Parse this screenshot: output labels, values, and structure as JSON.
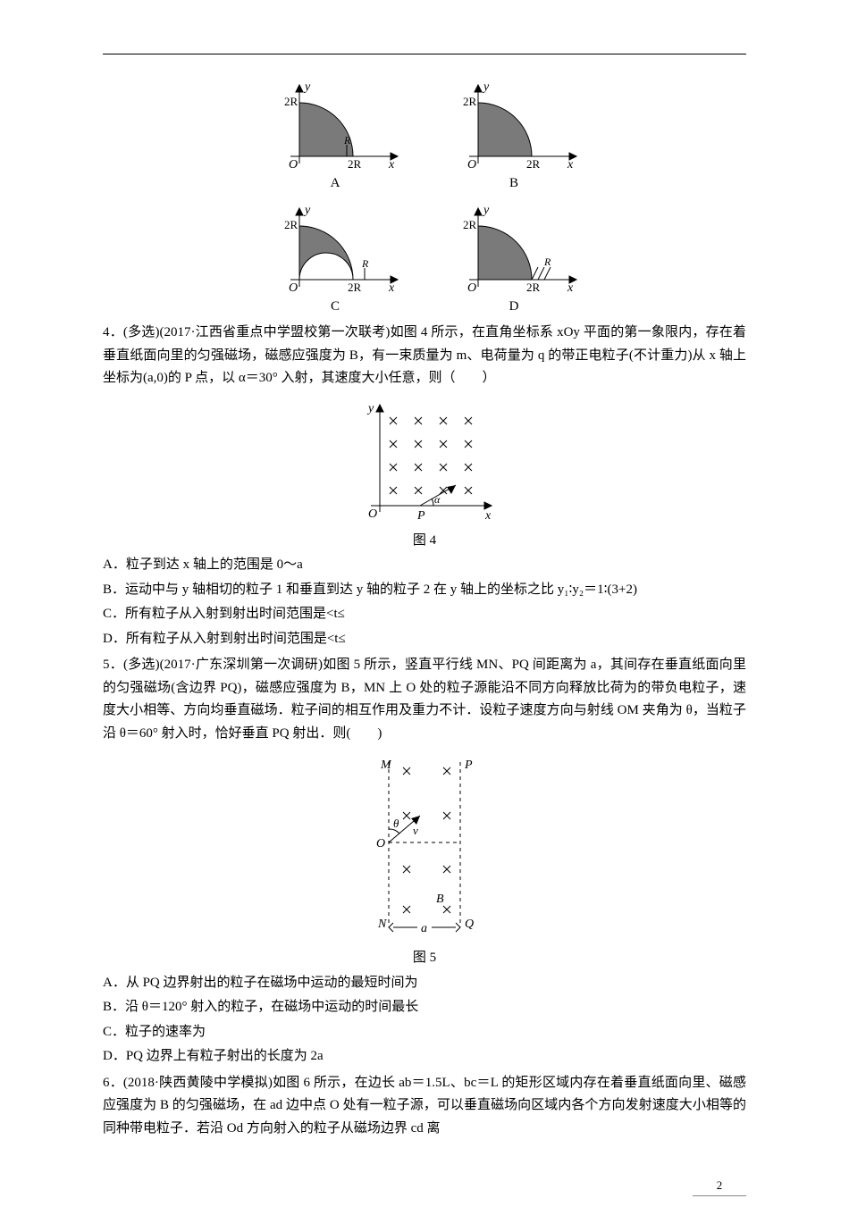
{
  "colors": {
    "text": "#000000",
    "rule": "#000000",
    "fill": "#7a7a7a",
    "bg": "#ffffff"
  },
  "fontsize": {
    "body": 15,
    "figlabel": 15,
    "pagenum": 13
  },
  "top_figure": {
    "cells": [
      "A",
      "B",
      "C",
      "D"
    ],
    "axis_labels": {
      "x": "x",
      "y": "y",
      "yTick": "2R",
      "xTick": "2R",
      "Rlabel": "R",
      "origin": "O"
    },
    "small_tick": {
      "A": true,
      "B": false,
      "C": true,
      "D": true
    }
  },
  "q4": {
    "stem": "4．(多选)(2017·江西省重点中学盟校第一次联考)如图 4 所示，在直角坐标系 xOy 平面的第一象限内，存在着垂直纸面向里的匀强磁场，磁感应强度为 B，有一束质量为 m、电荷量为 q 的带正电粒子(不计重力)从 x 轴上坐标为(a,0)的 P 点，以 α＝30° 入射，其速度大小任意，则（　　）",
    "fig_caption": "图 4",
    "fig": {
      "xlabel": "x",
      "ylabel": "y",
      "origin": "O",
      "P": "P",
      "alpha": "α",
      "cross_rows": 4,
      "cross_cols": 4
    },
    "options": {
      "A": "A．粒子到达 x 轴上的范围是 0～a",
      "B": "B．运动中与 y 轴相切的粒子 1 和垂直到达 y 轴的粒子 2 在 y 轴上的坐标之比 y₁∶y₂＝1∶(3+2)",
      "C": "C．所有粒子从入射到射出时间范围是<t≤",
      "D": "D．所有粒子从入射到射出时间范围是<t≤"
    }
  },
  "q5": {
    "stem": "5．(多选)(2017·广东深圳第一次调研)如图 5 所示，竖直平行线 MN、PQ 间距离为 a，其间存在垂直纸面向里的匀强磁场(含边界 PQ)，磁感应强度为 B，MN 上 O 处的粒子源能沿不同方向释放比荷为的带负电粒子，速度大小相等、方向均垂直磁场．粒子间的相互作用及重力不计．设粒子速度方向与射线 OM 夹角为 θ，当粒子沿 θ＝60° 射入时，恰好垂直 PQ 射出．则(　　)",
    "fig_caption": "图 5",
    "fig": {
      "M": "M",
      "N": "N",
      "P": "P",
      "Q": "Q",
      "O": "O",
      "B": "B",
      "theta": "θ",
      "v": "v",
      "a": "a",
      "cross_rows": 4,
      "cross_cols": 2
    },
    "options": {
      "A": "A．从 PQ 边界射出的粒子在磁场中运动的最短时间为",
      "B": "B．沿 θ＝120° 射入的粒子，在磁场中运动的时间最长",
      "C": "C．粒子的速率为",
      "D": "D．PQ 边界上有粒子射出的长度为 2a"
    }
  },
  "q6": {
    "stem": "6．(2018·陕西黄陵中学模拟)如图 6 所示，在边长 ab＝1.5L、bc＝L 的矩形区域内存在着垂直纸面向里、磁感应强度为 B 的匀强磁场，在 ad 边中点 O 处有一粒子源，可以垂直磁场向区域内各个方向发射速度大小相等的同种带电粒子．若沿 Od 方向射入的粒子从磁场边界 cd 离"
  },
  "pagenum": "2"
}
